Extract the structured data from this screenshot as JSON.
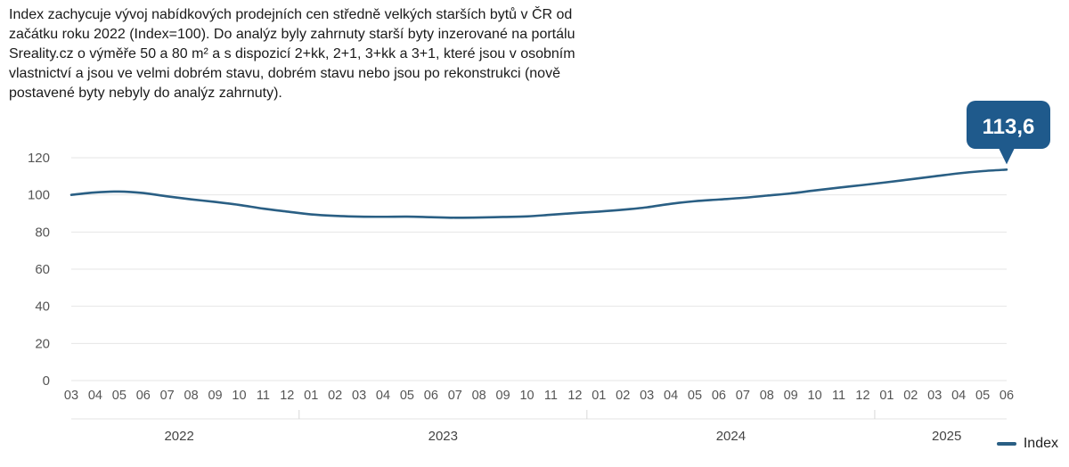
{
  "description": "Index zachycuje vývoj nabídkových prodejních cen středně velkých starších bytů v ČR od\nzačátku roku 2022 (Index=100). Do analýz byly zahrnuty starší byty inzerované na portálu\nSreality.cz o výměře 50 a 80 m² a s dispozicí 2+kk, 2+1, 3+kk a 3+1, které jsou v osobním\nvlastnictví a jsou ve velmi dobrém stavu, dobrém stavu nebo jsou po rekonstrukci (nově\npostavené byty nebyly do analýz zahrnuty).",
  "callout": {
    "text": "113,6",
    "color": "#1f5a8c"
  },
  "colors": {
    "line": "#2a5f84",
    "grid": "#e6e6e6"
  },
  "chart_data": {
    "type": "line",
    "title": "",
    "xlabel": "",
    "ylabel": "",
    "ylim": [
      0,
      120
    ],
    "y_ticks": [
      "0",
      "20",
      "40",
      "60",
      "80",
      "100",
      "120"
    ],
    "grid": true,
    "legend_position": "bottom-right",
    "x": [
      "03",
      "04",
      "05",
      "06",
      "07",
      "08",
      "09",
      "10",
      "11",
      "12",
      "01",
      "02",
      "03",
      "04",
      "05",
      "06",
      "07",
      "08",
      "09",
      "10",
      "11",
      "12",
      "01",
      "02",
      "03",
      "04",
      "05",
      "06",
      "07",
      "08",
      "09",
      "10",
      "11",
      "12",
      "01",
      "02",
      "03",
      "04",
      "05",
      "06"
    ],
    "year_labels": [
      {
        "label": "2022",
        "start": 0,
        "end": 9
      },
      {
        "label": "2023",
        "start": 10,
        "end": 21
      },
      {
        "label": "2024",
        "start": 22,
        "end": 33
      },
      {
        "label": "2025",
        "start": 34,
        "end": 39
      }
    ],
    "series": [
      {
        "name": "Index",
        "values": [
          100.0,
          101.3,
          101.8,
          101.0,
          99.2,
          97.6,
          96.2,
          94.6,
          92.6,
          91.0,
          89.5,
          88.7,
          88.3,
          88.2,
          88.3,
          88.0,
          87.7,
          87.8,
          88.1,
          88.4,
          89.3,
          90.2,
          91.0,
          92.0,
          93.3,
          95.2,
          96.6,
          97.5,
          98.4,
          99.6,
          100.8,
          102.4,
          103.9,
          105.3,
          106.8,
          108.4,
          110.0,
          111.6,
          112.8,
          113.6
        ]
      }
    ]
  }
}
